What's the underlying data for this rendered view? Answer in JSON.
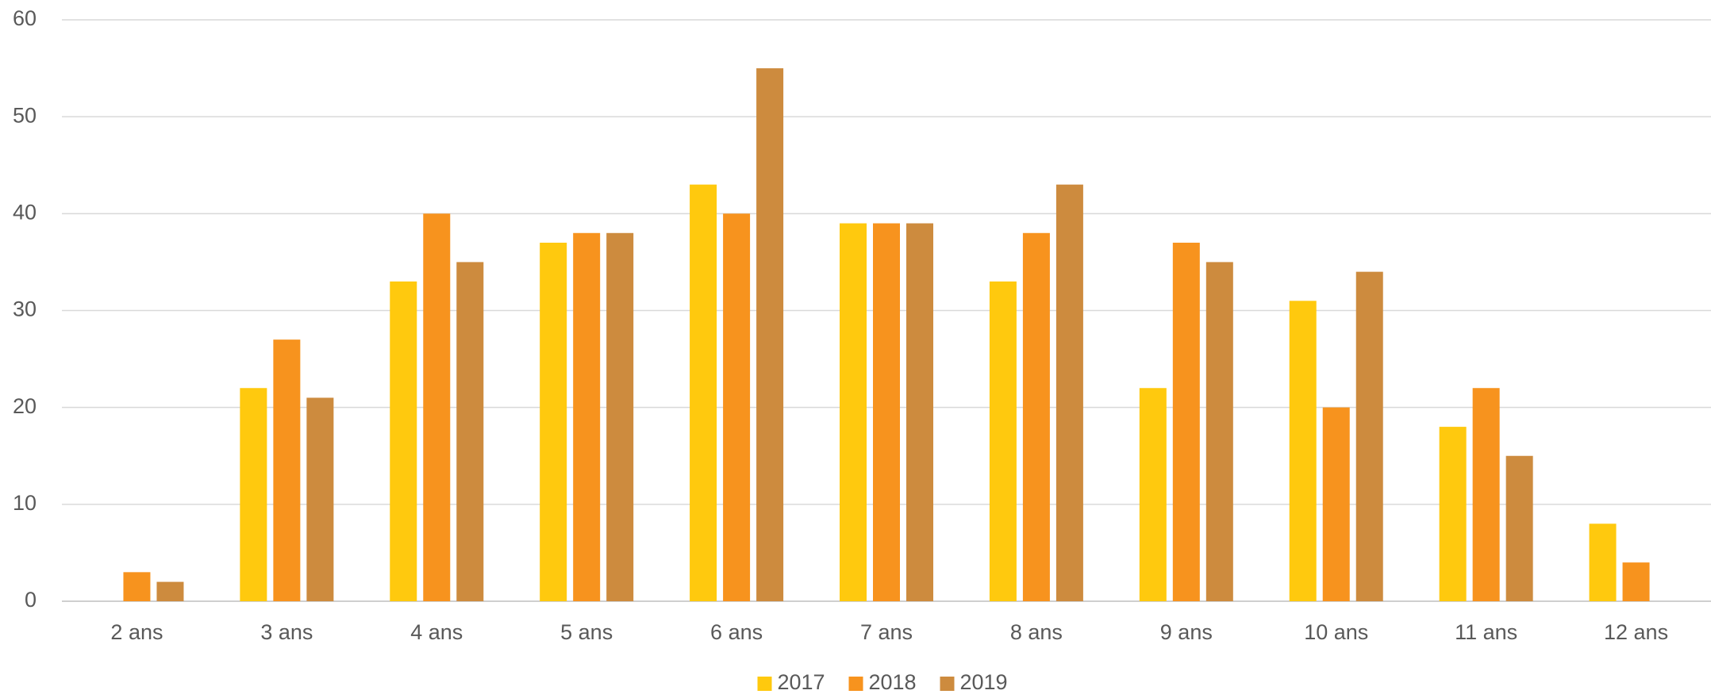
{
  "chart_data": {
    "type": "bar",
    "categories": [
      "2 ans",
      "3 ans",
      "4 ans",
      "5 ans",
      "6 ans",
      "7 ans",
      "8 ans",
      "9 ans",
      "10 ans",
      "11 ans",
      "12 ans"
    ],
    "series": [
      {
        "name": "2017",
        "color": "#ffc90e",
        "values": [
          0,
          22,
          33,
          37,
          43,
          39,
          33,
          22,
          31,
          18,
          8
        ]
      },
      {
        "name": "2018",
        "color": "#f7931e",
        "values": [
          3,
          27,
          40,
          38,
          40,
          39,
          38,
          37,
          20,
          22,
          4
        ]
      },
      {
        "name": "2019",
        "color": "#cd8b3e",
        "values": [
          2,
          21,
          35,
          38,
          55,
          39,
          43,
          35,
          34,
          15,
          0
        ]
      }
    ],
    "ylim": [
      0,
      60
    ],
    "yticks": [
      0,
      10,
      20,
      30,
      40,
      50,
      60
    ],
    "grid": true,
    "legend": "bottom"
  }
}
